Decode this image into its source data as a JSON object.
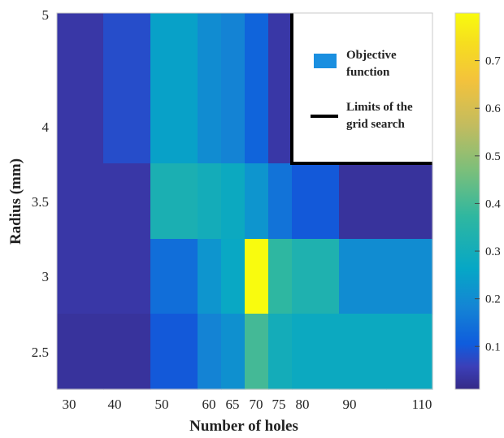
{
  "chart_data": {
    "type": "heatmap",
    "xlabel": "Number of holes",
    "ylabel": "Radius (mm)",
    "x_tick_labels": [
      "30",
      "40",
      "50",
      "60",
      "65",
      "70",
      "75",
      "80",
      "90",
      "110"
    ],
    "y_tick_labels": [
      "2.5",
      "3",
      "3.5",
      "4",
      "5"
    ],
    "colorbar": {
      "colormap": "parula",
      "range": [
        0.01,
        0.8
      ],
      "tick_labels": [
        "0.1",
        "0.2",
        "0.3",
        "0.4",
        "0.5",
        "0.6",
        "0.7"
      ]
    },
    "legend": {
      "placement": "top-right",
      "entries": [
        {
          "label": "Objective function",
          "symbol": "patch",
          "color": "#1a8fe0"
        },
        {
          "label": "Limits of the grid search",
          "symbol": "line",
          "color": "#000000"
        }
      ]
    },
    "columns": [
      {
        "x": 30,
        "label": "30"
      },
      {
        "x": 40,
        "label": "40"
      },
      {
        "x": 50,
        "label": "50"
      },
      {
        "x": 60,
        "label": "60"
      },
      {
        "x": 65,
        "label": "65"
      },
      {
        "x": 70,
        "label": "70"
      },
      {
        "x": 75,
        "label": "75"
      },
      {
        "x": 80,
        "label": "80"
      },
      {
        "x": 90,
        "label": "90"
      },
      {
        "x": 110,
        "label": "110"
      }
    ],
    "rows": [
      {
        "label": "4-5",
        "values": [
          0.04,
          0.08,
          0.25,
          0.2,
          0.18,
          0.12,
          0.04,
          null,
          null,
          null
        ]
      },
      {
        "label": "3.5",
        "values": [
          0.04,
          0.04,
          0.32,
          0.3,
          0.28,
          0.22,
          0.15,
          0.1,
          0.03,
          0.03
        ]
      },
      {
        "label": "3",
        "values": [
          0.04,
          0.04,
          0.14,
          0.22,
          0.27,
          0.8,
          0.37,
          0.33,
          0.2,
          0.2
        ]
      },
      {
        "label": "2.5",
        "values": [
          0.03,
          0.03,
          0.1,
          0.18,
          0.21,
          0.4,
          0.3,
          0.28,
          0.28,
          0.28
        ]
      }
    ]
  }
}
